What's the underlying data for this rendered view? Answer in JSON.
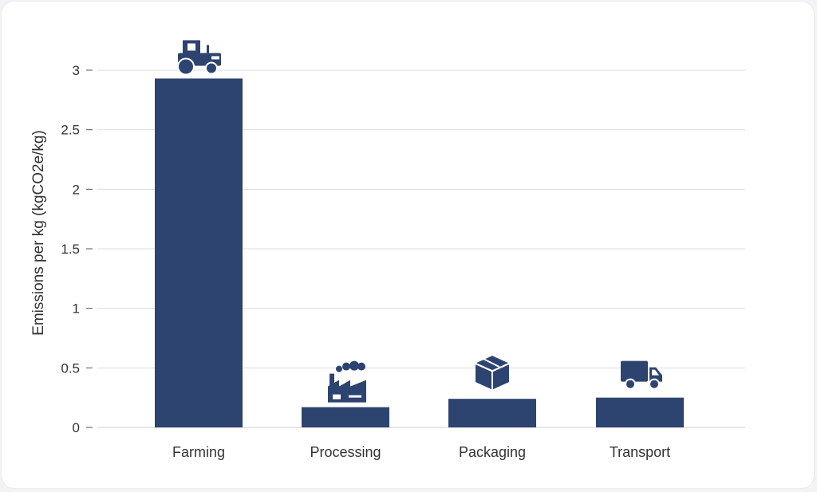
{
  "chart_data": {
    "type": "bar",
    "categories": [
      "Farming",
      "Processing",
      "Packaging",
      "Transport"
    ],
    "values": [
      2.93,
      0.17,
      0.24,
      0.25
    ],
    "icons": [
      "tractor-icon",
      "factory-icon",
      "box-icon",
      "truck-icon"
    ],
    "title": "",
    "xlabel": "",
    "ylabel": "Emissions per kg (kgCO2e/kg)",
    "ylim": [
      0,
      3.2
    ],
    "yticks": [
      0,
      0.5,
      1,
      1.5,
      2,
      2.5,
      3
    ],
    "grid": true,
    "bar_color": "#2d4470",
    "grid_color": "#dddde3",
    "text_color": "#333333"
  }
}
